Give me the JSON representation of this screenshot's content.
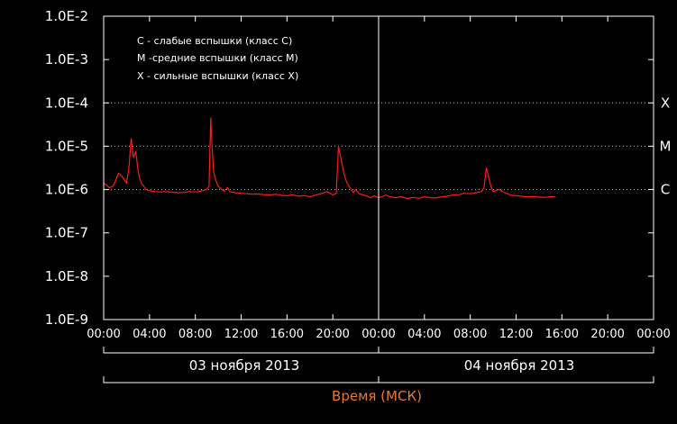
{
  "chart_data": {
    "type": "line",
    "colors": {
      "series": "#ff1a1a",
      "axis_title": "#e8782a",
      "frame": "#ffffff",
      "background": "#000000"
    },
    "y_scale": "log",
    "ylim": [
      1e-09,
      0.01
    ],
    "xlim_hours": [
      0,
      48
    ],
    "y_ticks": [
      "1.0E-2",
      "1.0E-3",
      "1.0E-4",
      "1.0E-5",
      "1.0E-6",
      "1.0E-7",
      "1.0E-8",
      "1.0E-9"
    ],
    "x_ticks": [
      "00:00",
      "04:00",
      "08:00",
      "12:00",
      "16:00",
      "20:00",
      "00:00",
      "04:00",
      "08:00",
      "12:00",
      "16:00",
      "20:00",
      "00:00"
    ],
    "class_lines": [
      {
        "label": "X",
        "value": 0.0001
      },
      {
        "label": "M",
        "value": 1e-05
      },
      {
        "label": "C",
        "value": 1e-06
      }
    ],
    "legend": [
      "C - слабые вспышки (класс C)",
      "M -средние вспышки (класс M)",
      "X - сильные вспышки (класс X)"
    ],
    "days": [
      "03 ноября 2013",
      "04 ноября 2013"
    ],
    "xlabel": "Время (МСК)",
    "series": [
      {
        "x": [
          0,
          0.2,
          0.5,
          0.8,
          1.0,
          1.3,
          1.6,
          2.0,
          2.2,
          2.4,
          2.6,
          2.8,
          2.9,
          3.0,
          3.1,
          3.2,
          3.3,
          3.5,
          3.7,
          3.9,
          4.2,
          4.5,
          5,
          5.5,
          6,
          6.5,
          7,
          7.5,
          8,
          8.5,
          9,
          9.2,
          9.35,
          9.45,
          9.6,
          9.8,
          10,
          10.3,
          10.5,
          10.8,
          11,
          11.5,
          12,
          12.5,
          13,
          13.5,
          14,
          14.5,
          15,
          15.5,
          16,
          16.5,
          17,
          17.5,
          18,
          18.5,
          19,
          19.5,
          20,
          20.3,
          20.5,
          20.6,
          20.8,
          21,
          21.2,
          21.5,
          21.8,
          22,
          22.3,
          22.5,
          23,
          23.3,
          23.6,
          24,
          24.3,
          24.6,
          25,
          25.5,
          26,
          26.5,
          27,
          27.5,
          28,
          28.5,
          29,
          29.5,
          30,
          30.5,
          31,
          31.5,
          32,
          32.5,
          33,
          33.2,
          33.4,
          33.6,
          33.8,
          34,
          34.5,
          35,
          35.5,
          36,
          36.5,
          37,
          37.5,
          38,
          38.5,
          39,
          39.4
        ],
        "y": [
          1.4e-06,
          1.3e-06,
          1.1e-06,
          1.2e-06,
          1.5e-06,
          2.4e-06,
          2e-06,
          1.4e-06,
          3.2e-06,
          1.5e-05,
          5.5e-06,
          7.5e-06,
          4.5e-06,
          2.8e-06,
          2e-06,
          1.6e-06,
          1.4e-06,
          1.2e-06,
          1e-06,
          9.5e-07,
          9.2e-07,
          9e-07,
          8.8e-07,
          9e-07,
          8.7e-07,
          8.5e-07,
          8.6e-07,
          9e-07,
          8.8e-07,
          9.2e-07,
          1e-06,
          1.2e-06,
          4.5e-05,
          1.1e-05,
          2.5e-06,
          1.6e-06,
          1.2e-06,
          1e-06,
          9.2e-07,
          1.1e-06,
          9e-07,
          8.5e-07,
          8.2e-07,
          8e-07,
          7.8e-07,
          7.9e-07,
          7.6e-07,
          7.5e-07,
          7.8e-07,
          7.4e-07,
          7.2e-07,
          7.6e-07,
          7e-07,
          7.3e-07,
          6.8e-07,
          7.5e-07,
          8e-07,
          9e-07,
          7.5e-07,
          8.2e-07,
          1e-05,
          7e-06,
          4e-06,
          2.2e-06,
          1.5e-06,
          1.1e-06,
          8.5e-07,
          1e-06,
          8e-07,
          7.8e-07,
          7e-07,
          6.5e-07,
          7.2e-07,
          6.5e-07,
          6.8e-07,
          7.5e-07,
          6.8e-07,
          6.5e-07,
          6.8e-07,
          6.2e-07,
          6.6e-07,
          6.3e-07,
          6.8e-07,
          6.5e-07,
          6.4e-07,
          6.8e-07,
          7e-07,
          7.5e-07,
          7.6e-07,
          8.2e-07,
          8e-07,
          8.5e-07,
          9e-07,
          1.1e-06,
          3.2e-06,
          2e-06,
          1.2e-06,
          9e-07,
          1e-06,
          8.5e-07,
          7.5e-07,
          7.2e-07,
          7e-07,
          6.8e-07,
          6.9e-07,
          6.7e-07,
          6.6e-07,
          6.9e-07,
          6.8e-07
        ]
      }
    ]
  }
}
